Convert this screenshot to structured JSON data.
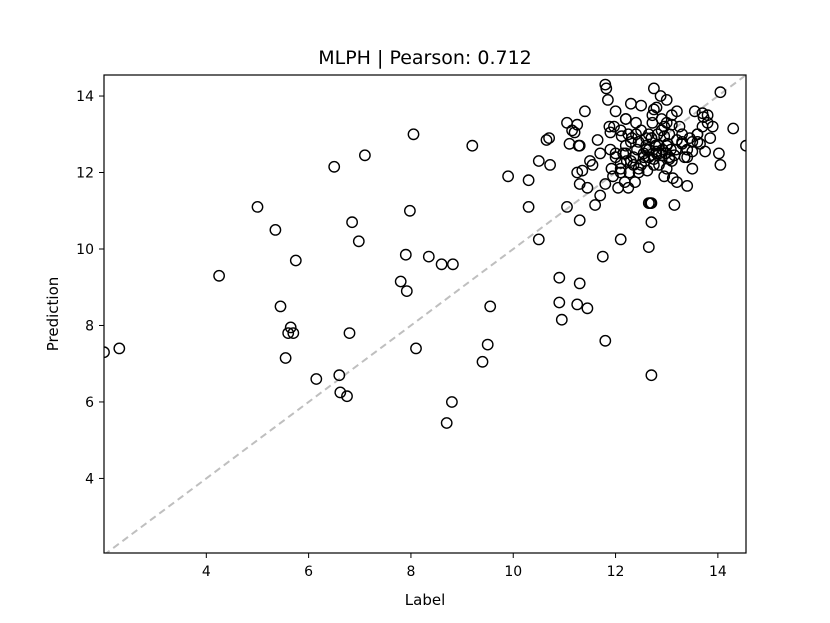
{
  "chart_data": {
    "type": "scatter",
    "title": "MLPH  |  Pearson: 0.712",
    "xlabel": "Label",
    "ylabel": "Prediction",
    "xlim": [
      2.0,
      14.55
    ],
    "ylim": [
      2.05,
      14.55
    ],
    "xticks": [
      4,
      6,
      8,
      10,
      12,
      14
    ],
    "yticks": [
      4,
      6,
      8,
      10,
      12,
      14
    ],
    "grid": false,
    "reference_line": {
      "style": "dashed",
      "color": "#bfbfbf",
      "description": "y = x"
    },
    "marker": {
      "shape": "open-circle",
      "edge_color": "#000000"
    },
    "x": [
      2.0,
      2.3,
      4.25,
      5.0,
      5.35,
      5.45,
      5.55,
      5.6,
      5.65,
      5.7,
      5.75,
      6.15,
      6.5,
      6.6,
      6.62,
      6.75,
      6.8,
      6.85,
      6.98,
      7.1,
      7.8,
      7.9,
      7.92,
      7.98,
      8.05,
      8.1,
      8.35,
      8.6,
      8.7,
      8.8,
      8.82,
      9.2,
      9.4,
      9.5,
      9.55,
      9.9,
      10.3,
      10.3,
      10.5,
      10.5,
      10.65,
      10.7,
      10.72,
      10.9,
      10.9,
      10.95,
      11.05,
      11.1,
      11.15,
      11.2,
      11.25,
      11.25,
      11.28,
      11.3,
      11.3,
      11.35,
      11.4,
      11.45,
      11.55,
      11.6,
      11.65,
      11.7,
      11.75,
      11.8,
      11.8,
      11.82,
      11.85,
      11.88,
      11.9,
      11.92,
      11.95,
      11.97,
      12.0,
      12.0,
      12.05,
      12.1,
      12.1,
      12.12,
      12.15,
      12.18,
      12.2,
      12.2,
      12.22,
      12.25,
      12.27,
      12.3,
      12.32,
      12.35,
      12.38,
      12.4,
      12.42,
      12.45,
      12.45,
      12.5,
      12.55,
      12.58,
      12.6,
      12.62,
      12.65,
      12.65,
      12.68,
      12.7,
      12.72,
      12.75,
      12.75,
      12.78,
      12.8,
      12.82,
      12.85,
      12.85,
      12.88,
      12.9,
      12.92,
      12.95,
      12.95,
      12.98,
      13.0,
      13.0,
      13.02,
      13.05,
      13.05,
      13.08,
      13.1,
      13.12,
      13.15,
      13.18,
      13.2,
      13.25,
      13.3,
      13.35,
      13.4,
      13.45,
      13.5,
      13.55,
      13.6,
      13.65,
      13.7,
      13.72,
      13.75,
      13.8,
      13.85,
      13.9,
      14.02,
      14.05,
      14.05,
      14.3,
      14.55,
      12.1,
      12.2,
      12.3,
      12.25,
      12.35,
      12.5,
      12.6,
      12.7,
      12.72,
      12.8,
      12.9,
      13.0,
      13.1,
      13.2,
      13.3,
      13.4,
      13.5,
      13.6,
      13.7,
      12.45,
      12.55,
      12.65,
      12.75,
      12.85,
      12.95,
      13.05,
      13.15,
      11.3,
      11.5,
      11.9,
      12.0,
      12.2,
      12.4,
      12.6,
      12.8,
      13.0,
      13.2,
      13.4,
      13.6,
      13.8,
      12.1,
      12.3,
      12.5,
      12.7,
      12.9,
      13.1,
      13.3,
      13.5,
      12.65,
      12.7,
      12.1,
      11.7,
      12.7,
      11.8,
      12.75,
      12.65,
      11.45,
      11.25,
      11.3,
      11.05
    ],
    "y": [
      7.3,
      7.4,
      9.3,
      11.1,
      10.5,
      8.5,
      7.15,
      7.8,
      7.95,
      7.8,
      9.7,
      6.6,
      12.15,
      6.7,
      6.25,
      6.15,
      7.8,
      10.7,
      10.2,
      12.45,
      9.15,
      9.85,
      8.9,
      11.0,
      13.0,
      7.4,
      9.8,
      9.6,
      5.45,
      6.0,
      9.6,
      12.7,
      7.05,
      7.5,
      8.5,
      11.9,
      11.8,
      11.1,
      10.25,
      12.3,
      12.85,
      12.9,
      12.2,
      9.25,
      8.6,
      8.15,
      13.3,
      12.75,
      13.1,
      13.05,
      12.0,
      13.25,
      12.7,
      10.75,
      9.1,
      12.05,
      13.6,
      11.6,
      12.2,
      11.15,
      12.85,
      12.5,
      9.8,
      14.3,
      11.7,
      14.2,
      13.9,
      13.2,
      12.6,
      12.1,
      11.9,
      13.2,
      12.4,
      13.6,
      11.6,
      12.1,
      13.1,
      12.95,
      12.5,
      11.75,
      12.7,
      13.4,
      12.3,
      11.6,
      12.0,
      13.8,
      12.9,
      12.2,
      11.75,
      13.3,
      12.6,
      12.1,
      12.8,
      13.75,
      12.5,
      12.3,
      12.9,
      12.05,
      13.0,
      12.4,
      11.2,
      11.2,
      13.5,
      14.2,
      12.35,
      12.7,
      13.7,
      13.0,
      12.5,
      12.2,
      14.0,
      13.4,
      12.6,
      11.9,
      13.2,
      12.5,
      13.9,
      13.3,
      12.75,
      12.4,
      13.0,
      12.6,
      13.5,
      11.85,
      11.15,
      12.6,
      11.75,
      13.2,
      12.8,
      12.4,
      11.65,
      12.9,
      12.55,
      13.6,
      13.0,
      12.75,
      13.2,
      13.45,
      12.55,
      13.3,
      12.9,
      13.2,
      12.5,
      14.1,
      12.2,
      13.15,
      12.7,
      12.25,
      12.5,
      12.8,
      13.0,
      12.4,
      12.2,
      12.6,
      12.9,
      13.3,
      12.5,
      13.1,
      12.7,
      12.3,
      12.85,
      13.0,
      12.6,
      12.8,
      13.0,
      13.55,
      12.0,
      12.4,
      12.6,
      12.2,
      12.7,
      12.95,
      12.35,
      12.45,
      12.7,
      12.3,
      13.05,
      12.5,
      13.4,
      13.0,
      12.7,
      12.55,
      12.1,
      13.6,
      12.4,
      12.8,
      13.5,
      12.0,
      12.3,
      13.1,
      12.9,
      12.45,
      13.25,
      12.75,
      12.1,
      10.05,
      10.7,
      10.25,
      11.4,
      6.7,
      7.6,
      13.65,
      11.2,
      8.45,
      8.55,
      11.7,
      11.1
    ]
  }
}
